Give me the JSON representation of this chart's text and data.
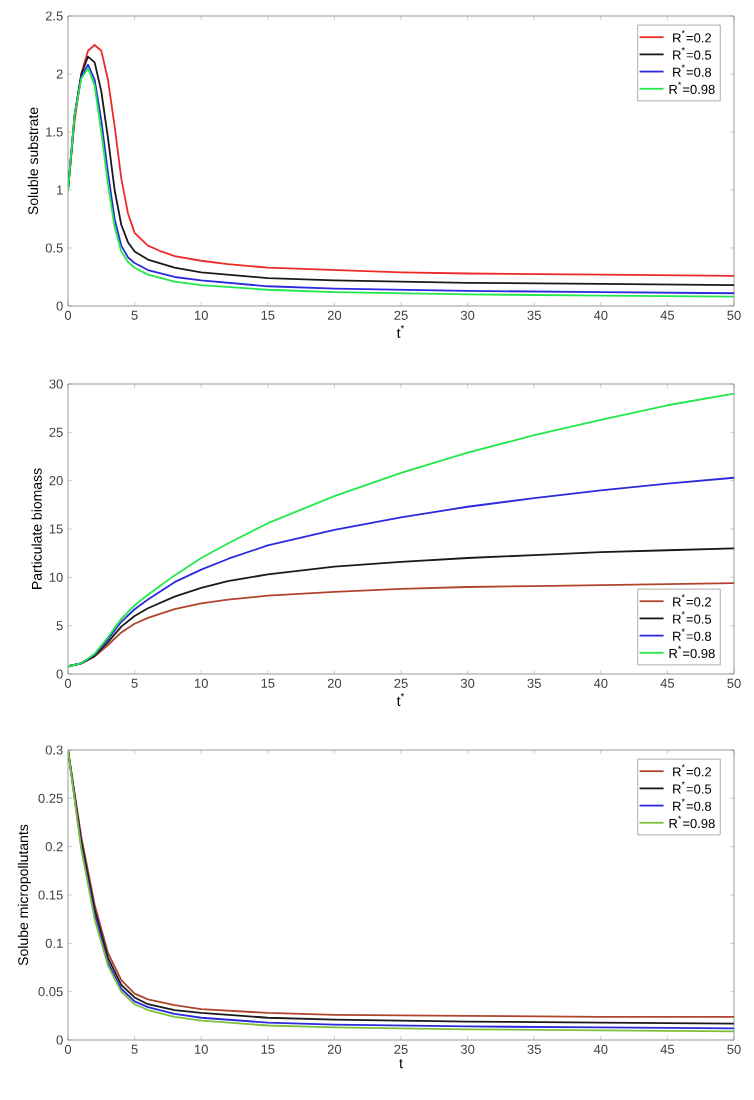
{
  "chart_data": [
    {
      "type": "line",
      "xlabel": "t$^{*}$",
      "ylabel": "Soluble substrate",
      "xlim": [
        0,
        50
      ],
      "ylim": [
        0,
        2.5
      ],
      "xticks": [
        0,
        5,
        10,
        15,
        20,
        25,
        30,
        35,
        40,
        45,
        50
      ],
      "yticks": [
        0,
        0.5,
        1,
        1.5,
        2,
        2.5
      ],
      "grid": false,
      "legend": "top right",
      "marker": "none",
      "line_style": "solid",
      "series": [
        {
          "name": "R$^{*}$=0.2",
          "color": "#ee2b2b",
          "x": [
            0,
            0.5,
            1,
            1.5,
            2,
            2.5,
            3,
            3.5,
            4,
            4.5,
            5,
            6,
            7,
            8,
            10,
            12,
            15,
            20,
            25,
            30,
            40,
            50
          ],
          "values": [
            1,
            1.6,
            2.0,
            2.2,
            2.25,
            2.2,
            1.95,
            1.55,
            1.1,
            0.8,
            0.63,
            0.52,
            0.47,
            0.43,
            0.39,
            0.36,
            0.33,
            0.31,
            0.29,
            0.28,
            0.27,
            0.26
          ]
        },
        {
          "name": "R$^{*}$=0.5",
          "color": "#1a1a1a",
          "x": [
            0,
            0.5,
            1,
            1.5,
            2,
            2.5,
            3,
            3.5,
            4,
            4.5,
            5,
            6,
            8,
            10,
            15,
            20,
            30,
            40,
            50
          ],
          "values": [
            1,
            1.65,
            2.0,
            2.15,
            2.1,
            1.85,
            1.45,
            1.0,
            0.7,
            0.55,
            0.47,
            0.4,
            0.33,
            0.29,
            0.24,
            0.22,
            0.2,
            0.19,
            0.18
          ]
        },
        {
          "name": "R$^{*}$=0.8",
          "color": "#2b2bdd",
          "x": [
            0,
            0.5,
            1,
            1.5,
            2,
            2.5,
            3,
            3.5,
            4,
            4.5,
            5,
            6,
            8,
            10,
            15,
            20,
            30,
            40,
            50
          ],
          "values": [
            1,
            1.65,
            1.98,
            2.08,
            1.95,
            1.6,
            1.15,
            0.75,
            0.52,
            0.42,
            0.37,
            0.31,
            0.25,
            0.22,
            0.17,
            0.15,
            0.13,
            0.12,
            0.11
          ]
        },
        {
          "name": "R$^{*}$=0.98",
          "color": "#22e84a",
          "x": [
            0,
            0.5,
            1,
            1.5,
            2,
            2.5,
            3,
            3.5,
            4,
            4.5,
            5,
            6,
            8,
            10,
            15,
            20,
            30,
            40,
            50
          ],
          "values": [
            1,
            1.65,
            1.96,
            2.05,
            1.9,
            1.5,
            1.05,
            0.68,
            0.47,
            0.38,
            0.33,
            0.27,
            0.21,
            0.18,
            0.14,
            0.12,
            0.1,
            0.09,
            0.08
          ]
        }
      ]
    },
    {
      "type": "line",
      "xlabel": "t$^{*}$",
      "ylabel": "Particulate biomass",
      "xlim": [
        0,
        50
      ],
      "ylim": [
        0,
        30
      ],
      "xticks": [
        0,
        5,
        10,
        15,
        20,
        25,
        30,
        35,
        40,
        45,
        50
      ],
      "yticks": [
        0,
        5,
        10,
        15,
        20,
        25,
        30
      ],
      "grid": false,
      "legend": "bottom right",
      "marker": "none",
      "line_style": "solid",
      "series": [
        {
          "name": "R$^{*}$=0.2",
          "color": "#b0452e",
          "x": [
            0,
            1,
            2,
            3,
            4,
            5,
            6,
            8,
            10,
            12,
            15,
            20,
            25,
            30,
            35,
            40,
            45,
            50
          ],
          "values": [
            0.8,
            1.1,
            1.8,
            3.0,
            4.3,
            5.2,
            5.8,
            6.7,
            7.3,
            7.7,
            8.1,
            8.5,
            8.8,
            9.0,
            9.1,
            9.2,
            9.3,
            9.4
          ]
        },
        {
          "name": "R$^{*}$=0.5",
          "color": "#1a1a1a",
          "x": [
            0,
            1,
            2,
            3,
            4,
            5,
            6,
            8,
            10,
            12,
            15,
            20,
            25,
            30,
            35,
            40,
            45,
            50
          ],
          "values": [
            0.8,
            1.1,
            1.9,
            3.3,
            4.9,
            6.0,
            6.8,
            8.0,
            8.9,
            9.6,
            10.3,
            11.1,
            11.6,
            12.0,
            12.3,
            12.6,
            12.8,
            13.0
          ]
        },
        {
          "name": "R$^{*}$=0.8",
          "color": "#2b2bdd",
          "x": [
            0,
            1,
            2,
            3,
            4,
            5,
            6,
            8,
            10,
            12,
            15,
            20,
            25,
            30,
            35,
            40,
            45,
            50
          ],
          "values": [
            0.8,
            1.1,
            2.0,
            3.6,
            5.4,
            6.7,
            7.7,
            9.5,
            10.8,
            11.9,
            13.3,
            14.9,
            16.2,
            17.3,
            18.2,
            19.0,
            19.7,
            20.3
          ]
        },
        {
          "name": "R$^{*}$=0.98",
          "color": "#22e84a",
          "x": [
            0,
            1,
            2,
            3,
            4,
            5,
            6,
            8,
            10,
            12,
            15,
            20,
            25,
            30,
            35,
            40,
            45,
            50
          ],
          "values": [
            0.8,
            1.1,
            2.1,
            3.8,
            5.7,
            7.1,
            8.2,
            10.2,
            12.0,
            13.5,
            15.6,
            18.4,
            20.8,
            22.9,
            24.7,
            26.3,
            27.8,
            29.0
          ]
        }
      ]
    },
    {
      "type": "line",
      "xlabel": "t",
      "ylabel": "Solube micropollutants",
      "xlim": [
        0,
        50
      ],
      "ylim": [
        0,
        0.3
      ],
      "xticks": [
        0,
        5,
        10,
        15,
        20,
        25,
        30,
        35,
        40,
        45,
        50
      ],
      "yticks": [
        0,
        0.05,
        0.1,
        0.15,
        0.2,
        0.25,
        0.3
      ],
      "grid": false,
      "legend": "top right",
      "marker": "none",
      "line_style": "solid",
      "series": [
        {
          "name": "R$^{*}$=0.2",
          "color": "#b0452e",
          "x": [
            0,
            1,
            2,
            3,
            4,
            5,
            6,
            8,
            10,
            15,
            20,
            30,
            40,
            50
          ],
          "values": [
            0.3,
            0.21,
            0.14,
            0.09,
            0.062,
            0.048,
            0.042,
            0.036,
            0.032,
            0.028,
            0.026,
            0.025,
            0.024,
            0.024
          ]
        },
        {
          "name": "R$^{*}$=0.5",
          "color": "#1a1a1a",
          "x": [
            0,
            1,
            2,
            3,
            4,
            5,
            6,
            8,
            10,
            15,
            20,
            30,
            40,
            50
          ],
          "values": [
            0.3,
            0.205,
            0.135,
            0.085,
            0.057,
            0.044,
            0.037,
            0.031,
            0.028,
            0.023,
            0.021,
            0.019,
            0.018,
            0.017
          ]
        },
        {
          "name": "R$^{*}$=0.8",
          "color": "#2b2bdd",
          "x": [
            0,
            1,
            2,
            3,
            4,
            5,
            6,
            8,
            10,
            15,
            20,
            30,
            40,
            50
          ],
          "values": [
            0.3,
            0.2,
            0.13,
            0.08,
            0.053,
            0.04,
            0.034,
            0.027,
            0.023,
            0.018,
            0.016,
            0.014,
            0.013,
            0.012
          ]
        },
        {
          "name": "R$^{*}$=0.98",
          "color": "#7cc13a",
          "x": [
            0,
            1,
            2,
            3,
            4,
            5,
            6,
            8,
            10,
            15,
            20,
            30,
            40,
            50
          ],
          "values": [
            0.3,
            0.197,
            0.125,
            0.077,
            0.05,
            0.037,
            0.031,
            0.024,
            0.02,
            0.015,
            0.013,
            0.011,
            0.01,
            0.009
          ]
        }
      ]
    }
  ]
}
